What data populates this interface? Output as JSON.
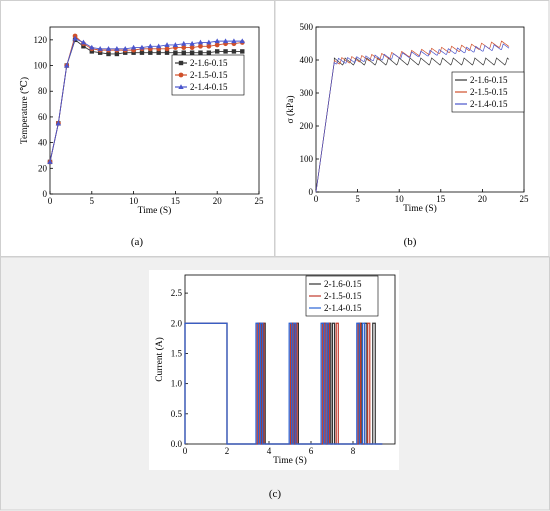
{
  "chart_data": [
    {
      "type": "line",
      "panel_label": "(a)",
      "xlabel": "Time (S)",
      "ylabel": "Temperature (℃)",
      "xlim": [
        0,
        25
      ],
      "ylim": [
        0,
        130
      ],
      "xticks": [
        "0",
        "5",
        "10",
        "15",
        "20",
        "25"
      ],
      "yticks": [
        "0",
        "20",
        "40",
        "60",
        "80",
        "100",
        "120"
      ],
      "legend_position": "center-right",
      "series": [
        {
          "name": "2-1.6-0.15",
          "color": "#333333",
          "marker": "square",
          "x": [
            0,
            1,
            2,
            3,
            4,
            5,
            6,
            7,
            8,
            9,
            10,
            11,
            12,
            13,
            14,
            15,
            16,
            17,
            18,
            19,
            20,
            21,
            22,
            23
          ],
          "y": [
            25,
            55,
            100,
            120,
            115,
            111,
            110,
            109,
            109,
            110,
            110,
            110,
            110,
            110,
            110,
            110,
            110,
            110,
            110,
            110,
            111,
            111,
            111,
            111
          ]
        },
        {
          "name": "2-1.5-0.15",
          "color": "#d0502a",
          "marker": "circle",
          "x": [
            0,
            1,
            2,
            3,
            4,
            5,
            6,
            7,
            8,
            9,
            10,
            11,
            12,
            13,
            14,
            15,
            16,
            17,
            18,
            19,
            20,
            21,
            22,
            23
          ],
          "y": [
            25,
            55,
            100,
            123,
            117,
            113,
            112,
            112,
            112,
            112,
            112,
            113,
            113,
            113,
            113,
            114,
            114,
            114,
            115,
            115,
            116,
            117,
            117,
            118
          ]
        },
        {
          "name": "2-1.4-0.15",
          "color": "#4a55cc",
          "marker": "triangle",
          "x": [
            0,
            1,
            2,
            3,
            4,
            5,
            6,
            7,
            8,
            9,
            10,
            11,
            12,
            13,
            14,
            15,
            16,
            17,
            18,
            19,
            20,
            21,
            22,
            23
          ],
          "y": [
            25,
            55,
            100,
            121,
            118,
            114,
            113,
            113,
            113,
            113,
            114,
            114,
            115,
            115,
            116,
            116,
            117,
            117,
            118,
            118,
            119,
            119,
            119,
            119
          ]
        }
      ]
    },
    {
      "type": "line",
      "panel_label": "(b)",
      "xlabel": "Time (S)",
      "ylabel": "σ (kPa)",
      "xlim": [
        0,
        25
      ],
      "ylim": [
        0,
        500
      ],
      "xticks": [
        "0",
        "5",
        "10",
        "15",
        "20",
        "25"
      ],
      "yticks": [
        "0",
        "100",
        "200",
        "300",
        "400",
        "500"
      ],
      "legend_position": "center-right",
      "series": [
        {
          "name": "2-1.6-0.15",
          "color": "#333333",
          "base": 395,
          "trend": 0,
          "amp": 22,
          "period": 1.3
        },
        {
          "name": "2-1.5-0.15",
          "color": "#d0502a",
          "base": 395,
          "trend": 2.6,
          "amp": 20,
          "period": 1.2
        },
        {
          "name": "2-1.4-0.15",
          "color": "#4a55cc",
          "base": 395,
          "trend": 2.2,
          "amp": 18,
          "period": 1.1
        }
      ]
    },
    {
      "type": "line",
      "panel_label": "(c)",
      "xlabel": "Time (S)",
      "ylabel": "Current (A)",
      "xlim": [
        0,
        10
      ],
      "ylim": [
        0,
        2.8
      ],
      "xticks": [
        "0",
        "2",
        "4",
        "6",
        "8"
      ],
      "yticks": [
        "0.0",
        "0.5",
        "1.0",
        "1.5",
        "2.0",
        "2.5"
      ],
      "legend_position": "top-right",
      "series": [
        {
          "name": "2-1.6-0.15",
          "color": "#333333",
          "pulses": [
            [
              0,
              2.0
            ],
            [
              3.5,
              3.62
            ],
            [
              3.72,
              3.82
            ],
            [
              5.08,
              5.2
            ],
            [
              5.3,
              5.4
            ],
            [
              6.6,
              6.72
            ],
            [
              6.84,
              6.94
            ],
            [
              7.02,
              7.12
            ],
            [
              8.3,
              8.42
            ],
            [
              8.56,
              8.66
            ],
            [
              8.94,
              9.06
            ]
          ]
        },
        {
          "name": "2-1.5-0.15",
          "color": "#c0392b",
          "pulses": [
            [
              0,
              2.0
            ],
            [
              3.44,
              3.56
            ],
            [
              3.66,
              3.76
            ],
            [
              5.02,
              5.14
            ],
            [
              5.24,
              5.34
            ],
            [
              6.54,
              6.66
            ],
            [
              6.78,
              6.88
            ],
            [
              7.2,
              7.3
            ],
            [
              8.24,
              8.36
            ],
            [
              8.7,
              8.8
            ]
          ]
        },
        {
          "name": "2-1.4-0.15",
          "color": "#2a63d6",
          "pulses": [
            [
              0,
              2.0
            ],
            [
              3.38,
              3.5
            ],
            [
              3.6,
              3.7
            ],
            [
              4.96,
              5.08
            ],
            [
              5.18,
              5.28
            ],
            [
              6.48,
              6.6
            ],
            [
              6.72,
              6.82
            ],
            [
              8.18,
              8.3
            ],
            [
              8.46,
              8.56
            ]
          ]
        }
      ]
    }
  ]
}
